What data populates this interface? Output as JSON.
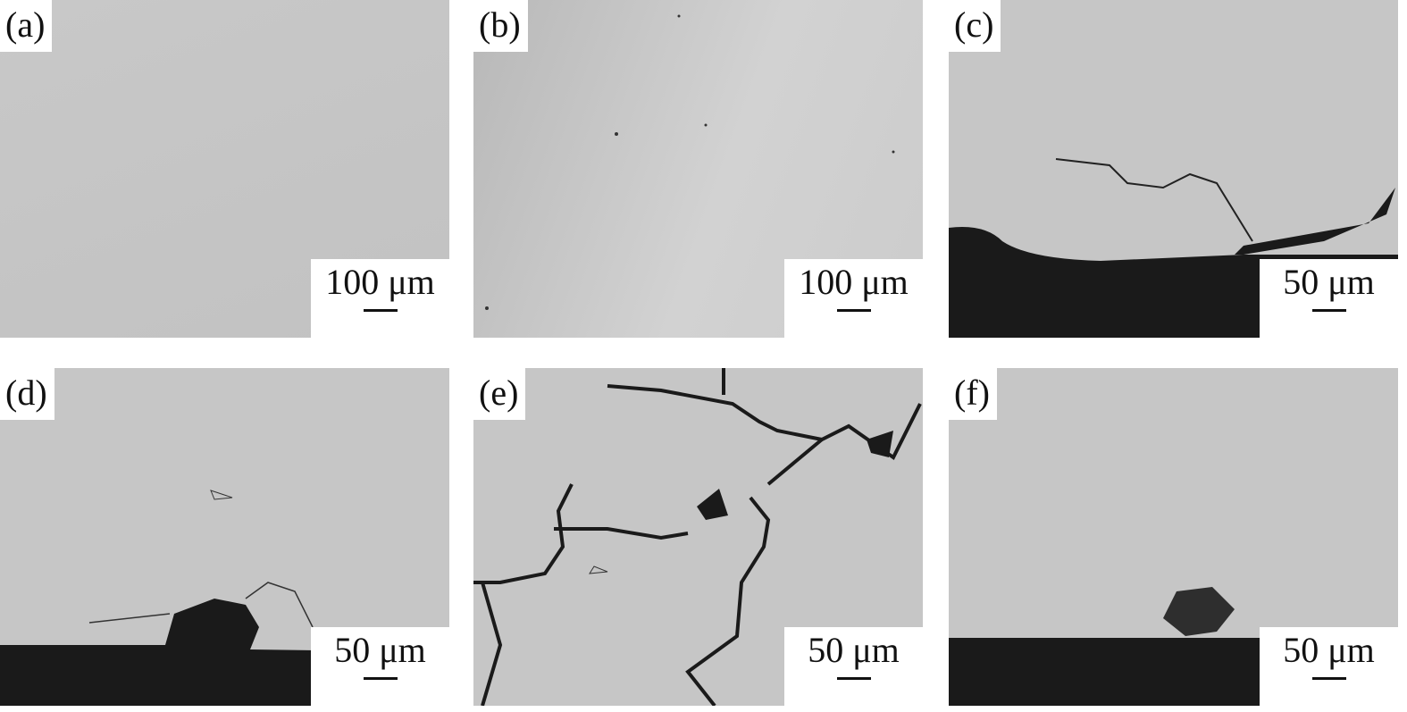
{
  "panels": [
    {
      "label": "(a)",
      "scale": "100 μm"
    },
    {
      "label": "(b)",
      "scale": "100 μm"
    },
    {
      "label": "(c)",
      "scale": "50 μm"
    },
    {
      "label": "(d)",
      "scale": "50 μm"
    },
    {
      "label": "(e)",
      "scale": "50 μm"
    },
    {
      "label": "(f)",
      "scale": "50 μm"
    }
  ],
  "colors": {
    "matrix": "#c6c6c6",
    "dark": "#1a1a1a"
  }
}
